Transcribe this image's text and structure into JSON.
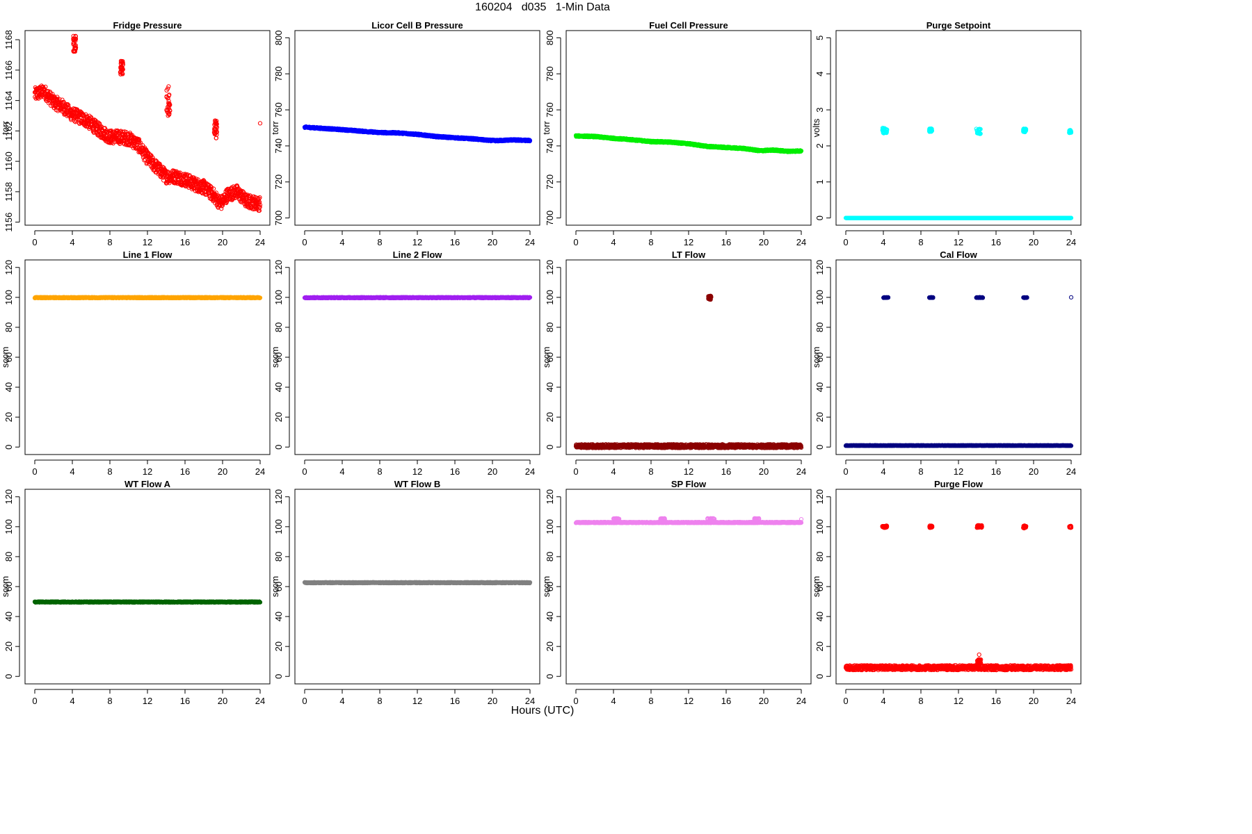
{
  "page": {
    "title": "160204   d035   1-Min Data",
    "xlabel": "Hours (UTC)"
  },
  "chart_data": [
    {
      "type": "scatter",
      "title": "Fridge Pressure",
      "ylabel": "torr",
      "color": "#ff0000",
      "xlim": [
        0,
        24
      ],
      "xticks": [
        0,
        4,
        8,
        12,
        16,
        20,
        24
      ],
      "ylim": [
        1155.8,
        1168.6
      ],
      "yticks": [
        1156,
        1158,
        1160,
        1162,
        1164,
        1166,
        1168
      ],
      "series": [
        {
          "kind": "trend",
          "points": [
            [
              0,
              1164.4
            ],
            [
              1,
              1164.6
            ],
            [
              2,
              1163.9
            ],
            [
              3,
              1163.6
            ],
            [
              3.7,
              1163.2
            ],
            [
              4.4,
              1163.0
            ],
            [
              5.5,
              1162.7
            ],
            [
              7,
              1162.0
            ],
            [
              8,
              1161.6
            ],
            [
              9,
              1161.6
            ],
            [
              10,
              1161.5
            ],
            [
              11,
              1161.1
            ],
            [
              12,
              1160.2
            ],
            [
              13,
              1159.6
            ],
            [
              14,
              1159.0
            ],
            [
              15,
              1159.0
            ],
            [
              16,
              1158.8
            ],
            [
              17,
              1158.5
            ],
            [
              18,
              1158.3
            ],
            [
              19,
              1157.8
            ],
            [
              19.8,
              1157.2
            ],
            [
              20.5,
              1157.8
            ],
            [
              21.5,
              1158.0
            ],
            [
              22.5,
              1157.4
            ],
            [
              23.9,
              1157.2
            ]
          ],
          "spread": 0.45
        }
      ],
      "clusters": [
        {
          "x": [
            4.1,
            4.4
          ],
          "y": [
            1167.2,
            1168.3
          ]
        },
        {
          "x": [
            9.1,
            9.4
          ],
          "y": [
            1165.7,
            1166.6
          ]
        },
        {
          "x": [
            14.0,
            14.4
          ],
          "y": [
            1163.0,
            1165.0
          ]
        },
        {
          "x": [
            19.1,
            19.4
          ],
          "y": [
            1161.5,
            1162.8
          ]
        }
      ],
      "singles": [
        [
          24,
          1162.5
        ]
      ]
    },
    {
      "type": "scatter",
      "title": "Licor Cell B Pressure",
      "ylabel": "torr",
      "color": "#0000ff",
      "xlim": [
        0,
        24
      ],
      "xticks": [
        0,
        4,
        8,
        12,
        16,
        20,
        24
      ],
      "ylim": [
        696,
        804
      ],
      "yticks": [
        700,
        720,
        740,
        760,
        780,
        800
      ],
      "series": [
        {
          "kind": "trend",
          "points": [
            [
              0,
              750.4
            ],
            [
              4,
              749.0
            ],
            [
              8,
              747.4
            ],
            [
              10,
              747.2
            ],
            [
              12,
              746.4
            ],
            [
              14,
              745.2
            ],
            [
              16,
              744.5
            ],
            [
              18,
              743.9
            ],
            [
              19.5,
              743.1
            ],
            [
              20.5,
              742.9
            ],
            [
              22,
              743.3
            ],
            [
              24,
              743.0
            ]
          ],
          "spread": 0.4
        }
      ],
      "clusters": [],
      "singles": []
    },
    {
      "type": "scatter",
      "title": "Fuel Cell Pressure",
      "ylabel": "torr",
      "color": "#00ee00",
      "xlim": [
        0,
        24
      ],
      "xticks": [
        0,
        4,
        8,
        12,
        16,
        20,
        24
      ],
      "ylim": [
        696,
        804
      ],
      "yticks": [
        700,
        720,
        740,
        760,
        780,
        800
      ],
      "series": [
        {
          "kind": "trend",
          "points": [
            [
              0,
              745.5
            ],
            [
              2,
              745.2
            ],
            [
              4,
              744.2
            ],
            [
              6,
              743.4
            ],
            [
              8,
              742.4
            ],
            [
              10,
              742.1
            ],
            [
              12,
              741.2
            ],
            [
              14,
              739.7
            ],
            [
              16,
              739.1
            ],
            [
              18,
              738.5
            ],
            [
              19.6,
              737.3
            ],
            [
              21,
              737.7
            ],
            [
              22.5,
              737.0
            ],
            [
              24,
              737.2
            ]
          ],
          "spread": 0.4
        }
      ],
      "clusters": [],
      "singles": []
    },
    {
      "type": "scatter",
      "title": "Purge Setpoint",
      "ylabel": "volts",
      "color": "#00ffff",
      "xlim": [
        0,
        24
      ],
      "xticks": [
        0,
        4,
        8,
        12,
        16,
        20,
        24
      ],
      "ylim": [
        -0.2,
        5.2
      ],
      "yticks": [
        0,
        1,
        2,
        3,
        4,
        5
      ],
      "series": [
        {
          "kind": "flat",
          "y": 0,
          "spread": 0
        }
      ],
      "clusters": [
        {
          "x": [
            3.9,
            4.4
          ],
          "y": [
            2.35,
            2.5
          ]
        },
        {
          "x": [
            8.9,
            9.2
          ],
          "y": [
            2.38,
            2.48
          ]
        },
        {
          "x": [
            13.9,
            14.4
          ],
          "y": [
            2.33,
            2.48
          ]
        },
        {
          "x": [
            18.9,
            19.2
          ],
          "y": [
            2.38,
            2.48
          ]
        },
        {
          "x": [
            23.8,
            24.0
          ],
          "y": [
            2.36,
            2.44
          ]
        }
      ],
      "singles": []
    },
    {
      "type": "scatter",
      "title": "Line 1 Flow",
      "ylabel": "sccm",
      "color": "#ffa500",
      "xlim": [
        0,
        24
      ],
      "xticks": [
        0,
        4,
        8,
        12,
        16,
        20,
        24
      ],
      "ylim": [
        -5,
        125
      ],
      "yticks": [
        0,
        20,
        40,
        60,
        80,
        100,
        120
      ],
      "series": [
        {
          "kind": "flat",
          "y": 99.8,
          "spread": 0.3
        }
      ],
      "clusters": [],
      "singles": []
    },
    {
      "type": "scatter",
      "title": "Line 2 Flow",
      "ylabel": "sccm",
      "color": "#a020f0",
      "xlim": [
        0,
        24
      ],
      "xticks": [
        0,
        4,
        8,
        12,
        16,
        20,
        24
      ],
      "ylim": [
        -5,
        125
      ],
      "yticks": [
        0,
        20,
        40,
        60,
        80,
        100,
        120
      ],
      "series": [
        {
          "kind": "flat",
          "y": 99.8,
          "spread": 0.3
        }
      ],
      "clusters": [],
      "singles": []
    },
    {
      "type": "scatter",
      "title": "LT Flow",
      "ylabel": "sccm",
      "color": "#8b0000",
      "xlim": [
        0,
        24
      ],
      "xticks": [
        0,
        4,
        8,
        12,
        16,
        20,
        24
      ],
      "ylim": [
        -5,
        125
      ],
      "yticks": [
        0,
        20,
        40,
        60,
        80,
        100,
        120
      ],
      "series": [
        {
          "kind": "flat",
          "y": 0.6,
          "spread": 1.2
        }
      ],
      "clusters": [
        {
          "x": [
            14.1,
            14.4
          ],
          "y": [
            98.5,
            101
          ]
        }
      ],
      "singles": []
    },
    {
      "type": "scatter",
      "title": "Cal Flow",
      "ylabel": "sccm",
      "color": "#000080",
      "xlim": [
        0,
        24
      ],
      "xticks": [
        0,
        4,
        8,
        12,
        16,
        20,
        24
      ],
      "ylim": [
        -5,
        125
      ],
      "yticks": [
        0,
        20,
        40,
        60,
        80,
        100,
        120
      ],
      "series": [
        {
          "kind": "flat",
          "y": 1.0,
          "spread": 0.15
        }
      ],
      "clusters": [
        {
          "x": [
            4.0,
            4.6
          ],
          "y": [
            99.7,
            100
          ]
        },
        {
          "x": [
            8.9,
            9.3
          ],
          "y": [
            99.7,
            100
          ]
        },
        {
          "x": [
            13.9,
            14.6
          ],
          "y": [
            99.7,
            100
          ]
        },
        {
          "x": [
            18.9,
            19.3
          ],
          "y": [
            99.7,
            100
          ]
        }
      ],
      "singles": [
        [
          24,
          100
        ]
      ]
    },
    {
      "type": "scatter",
      "title": "WT Flow A",
      "ylabel": "sccm",
      "color": "#006400",
      "xlim": [
        0,
        24
      ],
      "xticks": [
        0,
        4,
        8,
        12,
        16,
        20,
        24
      ],
      "ylim": [
        -5,
        125
      ],
      "yticks": [
        0,
        20,
        40,
        60,
        80,
        100,
        120
      ],
      "series": [
        {
          "kind": "flat",
          "y": 49.7,
          "spread": 0.3
        }
      ],
      "clusters": [],
      "singles": []
    },
    {
      "type": "scatter",
      "title": "WT Flow B",
      "ylabel": "sccm",
      "color": "#808080",
      "xlim": [
        0,
        24
      ],
      "xticks": [
        0,
        4,
        8,
        12,
        16,
        20,
        24
      ],
      "ylim": [
        -5,
        125
      ],
      "yticks": [
        0,
        20,
        40,
        60,
        80,
        100,
        120
      ],
      "series": [
        {
          "kind": "flat",
          "y": 62.6,
          "spread": 0.3
        }
      ],
      "clusters": [],
      "singles": []
    },
    {
      "type": "scatter",
      "title": "SP Flow",
      "ylabel": "sccm",
      "color": "#ee82ee",
      "xlim": [
        0,
        24
      ],
      "xticks": [
        0,
        4,
        8,
        12,
        16,
        20,
        24
      ],
      "ylim": [
        -5,
        125
      ],
      "yticks": [
        0,
        20,
        40,
        60,
        80,
        100,
        120
      ],
      "series": [
        {
          "kind": "flat",
          "y": 102.8,
          "spread": 0.3
        }
      ],
      "clusters": [
        {
          "x": [
            4.0,
            4.6
          ],
          "y": [
            104.8,
            105.6
          ]
        },
        {
          "x": [
            9.0,
            9.5
          ],
          "y": [
            104.8,
            105.6
          ]
        },
        {
          "x": [
            14.0,
            14.8
          ],
          "y": [
            104.8,
            105.6
          ]
        },
        {
          "x": [
            19.0,
            19.5
          ],
          "y": [
            104.8,
            105.6
          ]
        }
      ],
      "singles": [
        [
          24,
          105
        ]
      ]
    },
    {
      "type": "scatter",
      "title": "Purge Flow",
      "ylabel": "sccm",
      "color": "#ff0000",
      "xlim": [
        0,
        24
      ],
      "xticks": [
        0,
        4,
        8,
        12,
        16,
        20,
        24
      ],
      "ylim": [
        -5,
        125
      ],
      "yticks": [
        0,
        20,
        40,
        60,
        80,
        100,
        120
      ],
      "series": [
        {
          "kind": "flat",
          "y": 5.8,
          "spread": 1.6
        }
      ],
      "clusters": [
        {
          "x": [
            3.9,
            4.4
          ],
          "y": [
            99.3,
            100.7
          ]
        },
        {
          "x": [
            8.9,
            9.2
          ],
          "y": [
            99.3,
            100.7
          ]
        },
        {
          "x": [
            13.9,
            14.5
          ],
          "y": [
            99.3,
            101.0
          ]
        },
        {
          "x": [
            18.9,
            19.2
          ],
          "y": [
            99.0,
            100.7
          ]
        },
        {
          "x": [
            23.8,
            24.0
          ],
          "y": [
            99.3,
            100.7
          ]
        },
        {
          "x": [
            14.0,
            14.4
          ],
          "y": [
            8.5,
            11.5
          ]
        }
      ],
      "singles": [
        [
          14.2,
          14.5
        ]
      ]
    }
  ]
}
